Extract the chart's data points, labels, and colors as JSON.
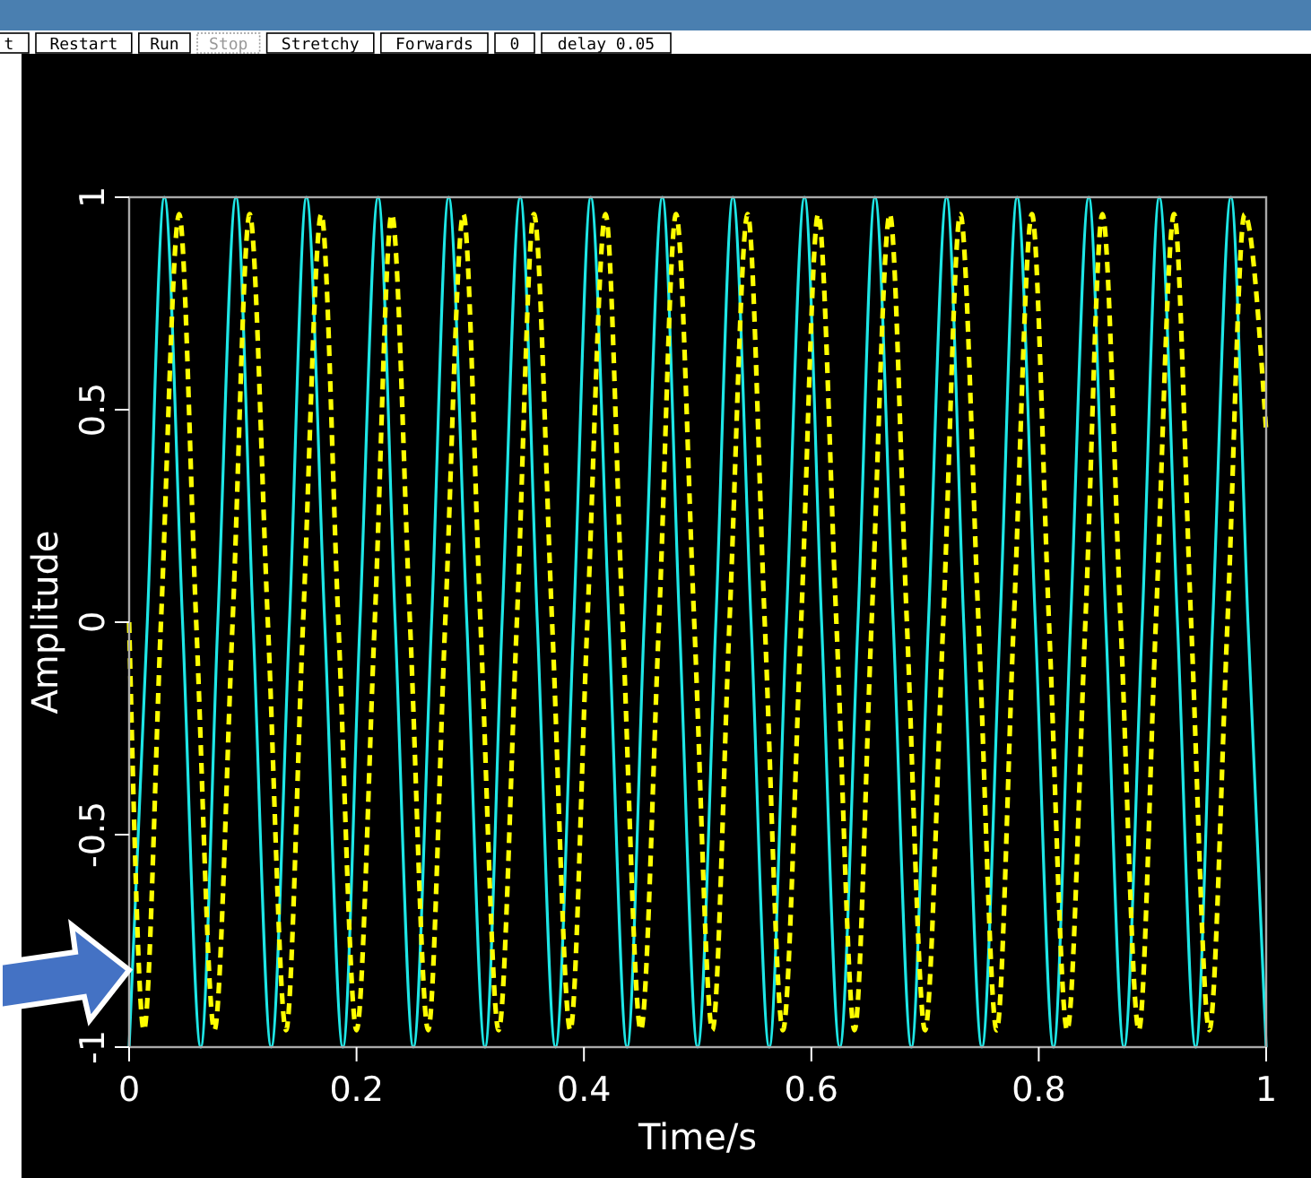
{
  "chart_data": {
    "type": "line",
    "xlabel": "Time/s",
    "ylabel": "Amplitude",
    "xlim": [
      0,
      1
    ],
    "xticks": [
      0,
      0.2,
      0.4,
      0.6,
      0.8,
      1
    ],
    "ylim": [
      -1,
      1
    ],
    "yticks": [
      -1,
      -0.5,
      0,
      0.5,
      1
    ],
    "grid": false,
    "marker": "none",
    "annotations": [
      "t",
      "Restart",
      "Run",
      "Stop",
      "Stretchy",
      "Forwards",
      "0",
      "delay 0.05"
    ],
    "series": [
      {
        "color": "#1ee6e6",
        "line_style": "solid",
        "x": [
          0,
          0.016,
          0.031,
          0.047,
          0.063,
          0.078,
          0.094,
          0.109,
          0.125,
          0.141,
          0.156,
          0.172,
          0.188,
          0.203,
          0.219,
          0.234,
          0.25,
          0.266,
          0.281,
          0.297,
          0.313,
          0.328,
          0.344,
          0.359,
          0.375,
          0.391,
          0.406,
          0.422,
          0.438,
          0.453,
          0.469,
          0.484,
          0.5,
          0.516,
          0.531,
          0.547,
          0.563,
          0.578,
          0.594,
          0.609,
          0.625,
          0.641,
          0.656,
          0.672,
          0.688,
          0.703,
          0.719,
          0.734,
          0.75,
          0.766,
          0.781,
          0.797,
          0.813,
          0.828,
          0.844,
          0.859,
          0.875,
          0.891,
          0.906,
          0.922,
          0.938,
          0.953,
          0.969,
          0.984,
          1
        ],
        "values": [
          -1,
          0,
          1,
          0,
          -1,
          0,
          1,
          0,
          -1,
          0,
          1,
          0,
          -1,
          0,
          1,
          0,
          -1,
          0,
          1,
          0,
          -1,
          0,
          1,
          0,
          -1,
          0,
          1,
          0,
          -1,
          0,
          1,
          0,
          -1,
          0,
          1,
          0,
          -1,
          0,
          1,
          0,
          -1,
          0,
          1,
          0,
          -1,
          0,
          1,
          0,
          -1,
          0,
          1,
          0,
          -1,
          0,
          1,
          0,
          -1,
          0,
          1,
          0,
          -1,
          0,
          1,
          0,
          -1
        ]
      },
      {
        "color": "#ffff00",
        "line_style": "dashed",
        "x": [
          0,
          0.013,
          0.028,
          0.044,
          0.059,
          0.075,
          0.091,
          0.106,
          0.122,
          0.138,
          0.153,
          0.169,
          0.184,
          0.2,
          0.216,
          0.231,
          0.247,
          0.263,
          0.278,
          0.294,
          0.309,
          0.325,
          0.341,
          0.356,
          0.372,
          0.388,
          0.403,
          0.419,
          0.434,
          0.45,
          0.466,
          0.481,
          0.497,
          0.513,
          0.528,
          0.544,
          0.559,
          0.575,
          0.591,
          0.606,
          0.622,
          0.638,
          0.653,
          0.669,
          0.684,
          0.7,
          0.716,
          0.731,
          0.747,
          0.763,
          0.778,
          0.794,
          0.809,
          0.825,
          0.841,
          0.856,
          0.872,
          0.888,
          0.903,
          0.919,
          0.934,
          0.95,
          0.966,
          0.981,
          1
        ],
        "values": [
          0,
          -0.96,
          0,
          0.96,
          0,
          -0.96,
          0,
          0.96,
          0,
          -0.96,
          0,
          0.96,
          0,
          -0.96,
          0,
          0.96,
          0,
          -0.96,
          0,
          0.96,
          0,
          -0.96,
          0,
          0.96,
          0,
          -0.96,
          0,
          0.96,
          0,
          -0.96,
          0,
          0.96,
          0,
          -0.96,
          0,
          0.96,
          0,
          -0.96,
          0,
          0.96,
          0,
          -0.96,
          0,
          0.96,
          0,
          -0.96,
          0,
          0.96,
          0,
          -0.96,
          0,
          0.96,
          0,
          -0.96,
          0,
          0.96,
          0,
          -0.96,
          0,
          0.96,
          0,
          -0.96,
          0,
          0.96,
          0.45
        ]
      }
    ]
  }
}
